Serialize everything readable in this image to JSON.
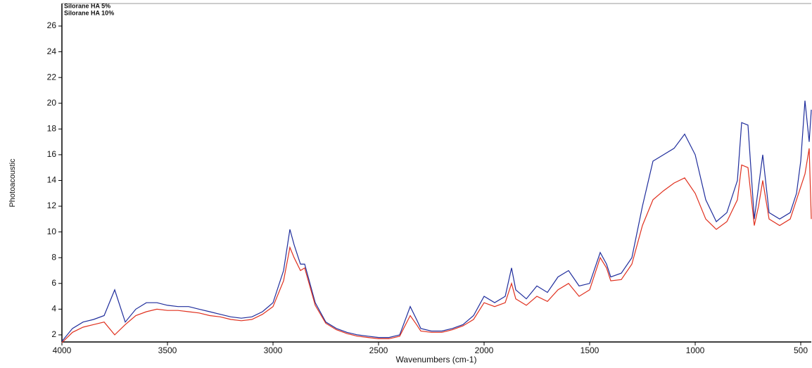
{
  "chart_data": {
    "type": "line",
    "xlabel": "Wavenumbers (cm-1)",
    "ylabel": "Photoacoustic",
    "x": [
      4000,
      3950,
      3900,
      3850,
      3800,
      3750,
      3700,
      3650,
      3600,
      3550,
      3500,
      3450,
      3400,
      3350,
      3300,
      3250,
      3200,
      3150,
      3100,
      3050,
      3000,
      2950,
      2920,
      2900,
      2870,
      2850,
      2800,
      2750,
      2700,
      2650,
      2600,
      2550,
      2500,
      2450,
      2400,
      2350,
      2320,
      2300,
      2250,
      2200,
      2150,
      2100,
      2050,
      2000,
      1950,
      1900,
      1870,
      1850,
      1800,
      1750,
      1700,
      1650,
      1600,
      1550,
      1500,
      1450,
      1420,
      1400,
      1350,
      1300,
      1250,
      1200,
      1150,
      1100,
      1050,
      1000,
      950,
      900,
      850,
      800,
      780,
      750,
      720,
      700,
      680,
      650,
      600,
      550,
      520,
      500,
      480,
      460,
      450
    ],
    "series": [
      {
        "name": "Silorane HA 5%",
        "color": "#1f2d9c",
        "values": [
          1.5,
          2.5,
          3.0,
          3.2,
          3.5,
          5.5,
          3.0,
          4.0,
          4.5,
          4.5,
          4.3,
          4.2,
          4.2,
          4.0,
          3.8,
          3.6,
          3.4,
          3.3,
          3.4,
          3.8,
          4.5,
          7.0,
          10.2,
          9.0,
          7.5,
          7.5,
          4.5,
          3.0,
          2.5,
          2.2,
          2.0,
          1.9,
          1.8,
          1.8,
          2.0,
          4.2,
          3.2,
          2.5,
          2.3,
          2.3,
          2.5,
          2.8,
          3.5,
          5.0,
          4.5,
          5.0,
          7.2,
          5.5,
          4.8,
          5.8,
          5.3,
          6.5,
          7.0,
          5.8,
          6.0,
          8.4,
          7.5,
          6.5,
          6.8,
          8.0,
          12.0,
          15.5,
          16.0,
          16.5,
          17.6,
          16.0,
          12.5,
          10.8,
          11.5,
          14.0,
          18.5,
          18.3,
          11.0,
          13.5,
          16.0,
          11.5,
          11.0,
          11.5,
          13.0,
          15.5,
          20.2,
          17.0,
          19.5
        ]
      },
      {
        "name": "Silorane HA 10%",
        "color": "#e0301e",
        "values": [
          1.4,
          2.2,
          2.6,
          2.8,
          3.0,
          2.0,
          2.8,
          3.5,
          3.8,
          4.0,
          3.9,
          3.9,
          3.8,
          3.7,
          3.5,
          3.4,
          3.2,
          3.1,
          3.2,
          3.6,
          4.2,
          6.2,
          8.8,
          8.0,
          7.0,
          7.2,
          4.3,
          2.9,
          2.4,
          2.1,
          1.9,
          1.8,
          1.7,
          1.7,
          1.9,
          3.5,
          2.8,
          2.3,
          2.2,
          2.2,
          2.4,
          2.7,
          3.2,
          4.5,
          4.2,
          4.5,
          6.0,
          4.8,
          4.3,
          5.0,
          4.6,
          5.5,
          6.0,
          5.0,
          5.5,
          8.0,
          7.2,
          6.2,
          6.3,
          7.5,
          10.5,
          12.5,
          13.2,
          13.8,
          14.2,
          13.0,
          11.0,
          10.2,
          10.8,
          12.5,
          15.2,
          15.0,
          10.5,
          12.0,
          14.0,
          11.0,
          10.5,
          11.0,
          12.5,
          13.5,
          14.5,
          16.5,
          11.0
        ]
      }
    ],
    "xlim": [
      4000,
      450
    ],
    "xticks": [
      4000,
      3500,
      3000,
      2500,
      2000,
      1500,
      1000,
      500
    ],
    "ylim": [
      1.45,
      27.75
    ],
    "yticks": [
      2,
      4,
      6,
      8,
      10,
      12,
      14,
      16,
      18,
      20,
      22,
      24,
      26
    ]
  }
}
